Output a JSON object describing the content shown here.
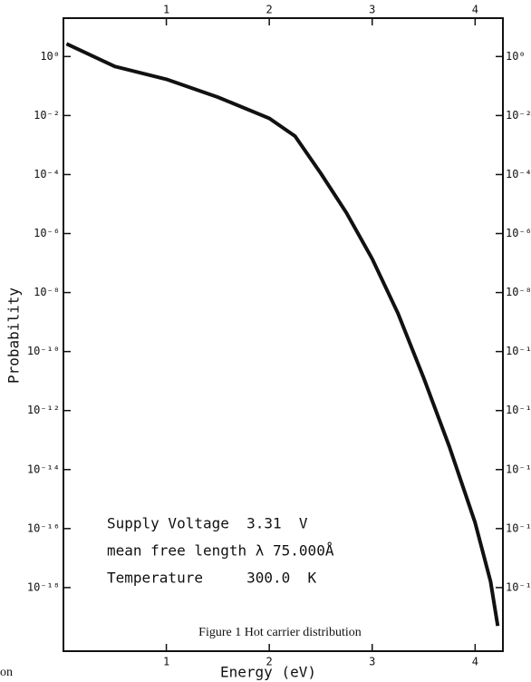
{
  "chart_data": {
    "type": "line",
    "x_label": "Energy (eV)",
    "y_label": "Probability",
    "caption": "Figure 1 Hot carrier distribution",
    "annotations": [
      "Supply Voltage  3.31  V",
      "mean free length λ 75.000Å",
      "Temperature     300.0  K"
    ],
    "fragment": "on",
    "log_y": true,
    "color": "#111111",
    "x": [
      0.03,
      0.5,
      1.0,
      1.5,
      2.0,
      2.25,
      2.5,
      2.75,
      3.0,
      3.25,
      3.5,
      3.75,
      4.0,
      4.15,
      4.22
    ],
    "values": [
      2.7,
      0.46,
      0.17,
      0.042,
      0.008,
      0.002,
      0.00011,
      5e-06,
      1.4e-07,
      2e-09,
      1.3e-11,
      6e-14,
      1.6e-16,
      1.6e-18,
      5e-20
    ],
    "xlim": [
      0,
      4.27
    ],
    "ylim": [
      7e-21,
      20
    ],
    "xticks": [
      1,
      2,
      3,
      4
    ],
    "yticks": [
      {
        "value": 1,
        "label": "10⁰"
      },
      {
        "value": 0.01,
        "label": "10⁻²"
      },
      {
        "value": 0.0001,
        "label": "10⁻⁴"
      },
      {
        "value": 1e-06,
        "label": "10⁻⁶"
      },
      {
        "value": 1e-08,
        "label": "10⁻⁸"
      },
      {
        "value": 1e-10,
        "label": "10⁻¹⁰"
      },
      {
        "value": 1e-12,
        "label": "10⁻¹²"
      },
      {
        "value": 1e-14,
        "label": "10⁻¹⁴"
      },
      {
        "value": 1e-16,
        "label": "10⁻¹⁶"
      },
      {
        "value": 1e-18,
        "label": "10⁻¹⁸"
      }
    ]
  }
}
